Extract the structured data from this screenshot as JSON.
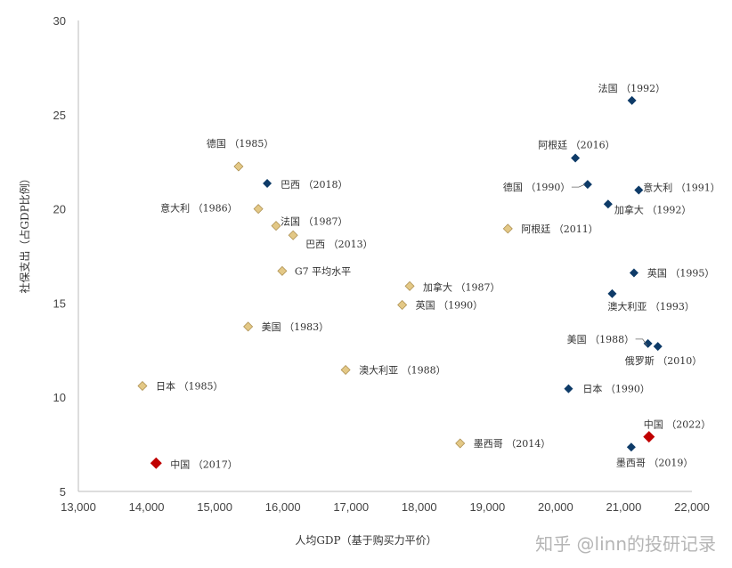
{
  "chart_data": {
    "type": "scatter",
    "title": "",
    "xlabel": "人均GDP（基于购买力平价）",
    "ylabel": "社保支出（占GDP比例）",
    "xlim": [
      13000,
      22000
    ],
    "ylim": [
      5,
      30
    ],
    "xticks": [
      "13,000",
      "14,000",
      "15,000",
      "16,000",
      "17,000",
      "18,000",
      "19,000",
      "20,000",
      "21,000",
      "22,000"
    ],
    "yticks": [
      "5",
      "10",
      "15",
      "20",
      "25",
      "30"
    ],
    "grid": false,
    "legend": "none",
    "colors": {
      "early": "#e3c886",
      "late": "#0e3b68",
      "china": "#c00000"
    },
    "points": [
      {
        "label": "德国 （1985）",
        "x": 15350,
        "y": 22.25,
        "group": "early"
      },
      {
        "label": "巴西 （2018）",
        "x": 15770,
        "y": 21.35,
        "group": "late"
      },
      {
        "label": "意大利 （1986）",
        "x": 15640,
        "y": 20.0,
        "group": "early"
      },
      {
        "label": "法国 （1987）",
        "x": 15900,
        "y": 19.1,
        "group": "early"
      },
      {
        "label": "巴西 （2013）",
        "x": 16150,
        "y": 18.6,
        "group": "early"
      },
      {
        "label": "G7 平均水平",
        "x": 15990,
        "y": 16.7,
        "group": "early"
      },
      {
        "label": "美国 （1983）",
        "x": 15490,
        "y": 13.75,
        "group": "early"
      },
      {
        "label": "日本 （1985）",
        "x": 13940,
        "y": 10.6,
        "group": "early"
      },
      {
        "label": "中国 （2017）",
        "x": 14140,
        "y": 6.5,
        "group": "china"
      },
      {
        "label": "加拿大 （1987）",
        "x": 17860,
        "y": 15.9,
        "group": "early"
      },
      {
        "label": "英国 （1990）",
        "x": 17750,
        "y": 14.9,
        "group": "early"
      },
      {
        "label": "澳大利亚 （1988）",
        "x": 16920,
        "y": 11.45,
        "group": "early"
      },
      {
        "label": "墨西哥 （2014）",
        "x": 18600,
        "y": 7.55,
        "group": "early"
      },
      {
        "label": "阿根廷 （2011）",
        "x": 19300,
        "y": 18.95,
        "group": "early"
      },
      {
        "label": "法国 （1992）",
        "x": 21120,
        "y": 25.75,
        "group": "late"
      },
      {
        "label": "阿根廷 （2016）",
        "x": 20290,
        "y": 22.7,
        "group": "late"
      },
      {
        "label": "德国 （1990）",
        "x": 20470,
        "y": 21.3,
        "group": "late"
      },
      {
        "label": "意大利 （1991）",
        "x": 21220,
        "y": 21.0,
        "group": "late"
      },
      {
        "label": "加拿大 （1992）",
        "x": 20770,
        "y": 20.25,
        "group": "late"
      },
      {
        "label": "英国 （1995）",
        "x": 21150,
        "y": 16.6,
        "group": "late"
      },
      {
        "label": "澳大利亚 （1993）",
        "x": 20830,
        "y": 15.5,
        "group": "late"
      },
      {
        "label": "美国 （1988）",
        "x": 21355,
        "y": 12.85,
        "group": "late"
      },
      {
        "label": "俄罗斯 （2010）",
        "x": 21500,
        "y": 12.7,
        "group": "late"
      },
      {
        "label": "日本 （1990）",
        "x": 20190,
        "y": 10.45,
        "group": "late"
      },
      {
        "label": "中国 （2022）",
        "x": 21370,
        "y": 7.9,
        "group": "china"
      },
      {
        "label": "墨西哥 （2019）",
        "x": 21110,
        "y": 7.35,
        "group": "late"
      }
    ]
  },
  "watermark": "知乎 @linn的投研记录"
}
